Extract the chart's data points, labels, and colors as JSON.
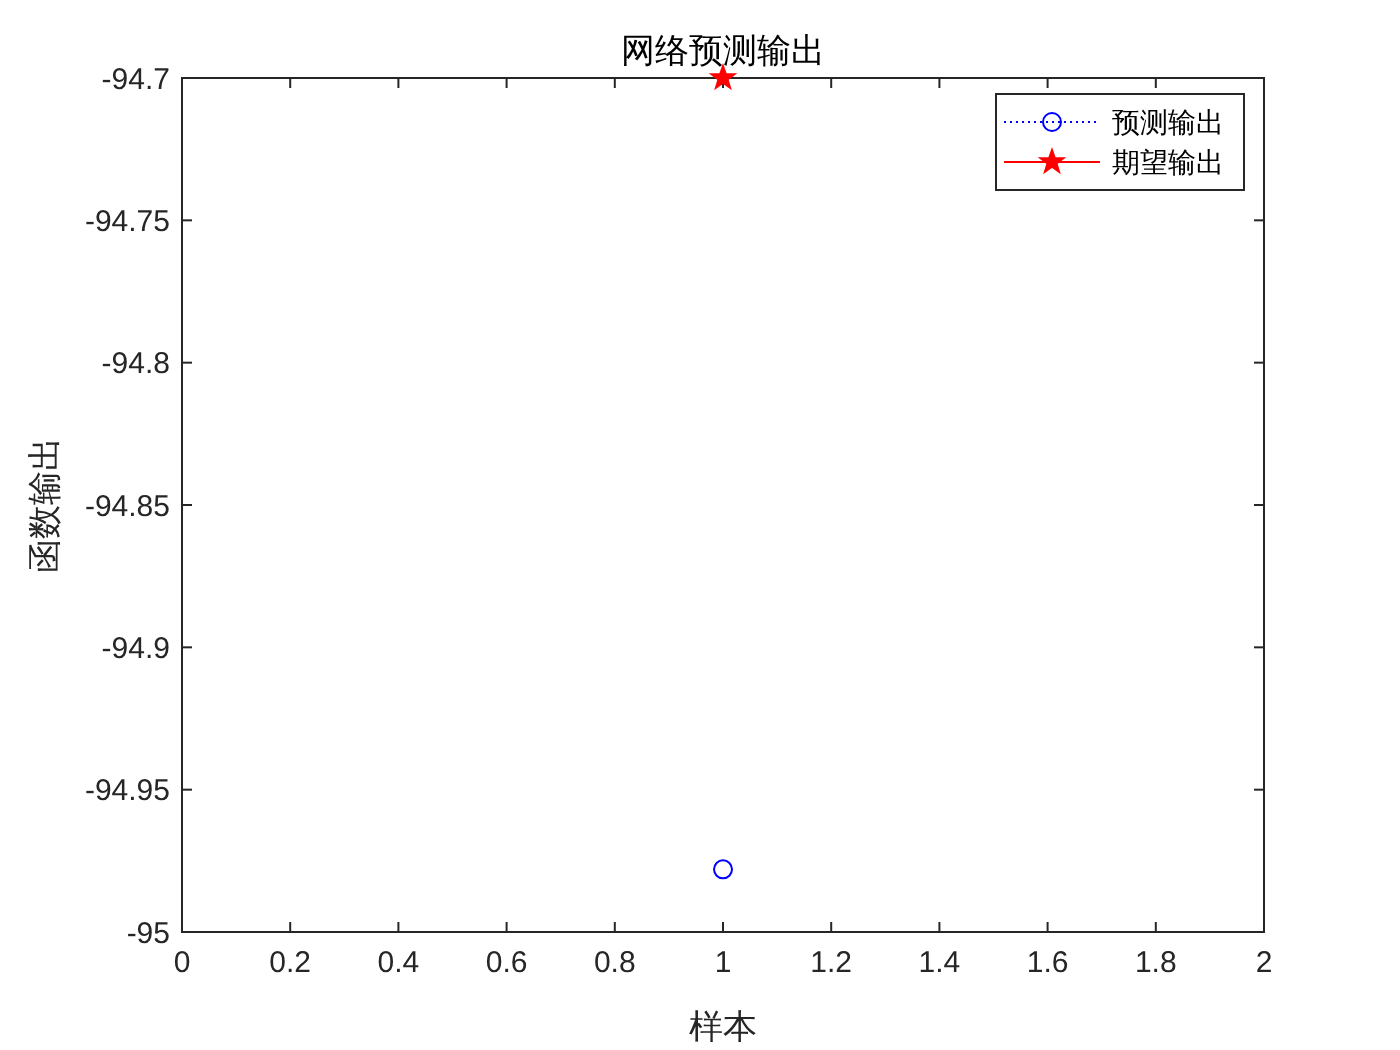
{
  "chart_data": {
    "type": "line",
    "title": "网络预测输出",
    "xlabel": "样本",
    "ylabel": "函数输出",
    "x": [
      1
    ],
    "series": [
      {
        "name": "预测输出",
        "color": "#0000ff",
        "values": [
          -94.978
        ],
        "marker": "circle",
        "line_style": "dotted"
      },
      {
        "name": "期望输出",
        "color": "#ff0000",
        "values": [
          -94.7
        ],
        "marker": "star",
        "line_style": "solid"
      }
    ],
    "xlim": [
      0,
      2
    ],
    "xticks": [
      0,
      0.2,
      0.4,
      0.6,
      0.8,
      1,
      1.2,
      1.4,
      1.6,
      1.8,
      2
    ],
    "ylim": [
      -95,
      -94.7
    ],
    "yticks": [
      -95,
      -94.95,
      -94.9,
      -94.85,
      -94.8,
      -94.75,
      -94.7
    ],
    "grid": false,
    "legend": "top right"
  }
}
